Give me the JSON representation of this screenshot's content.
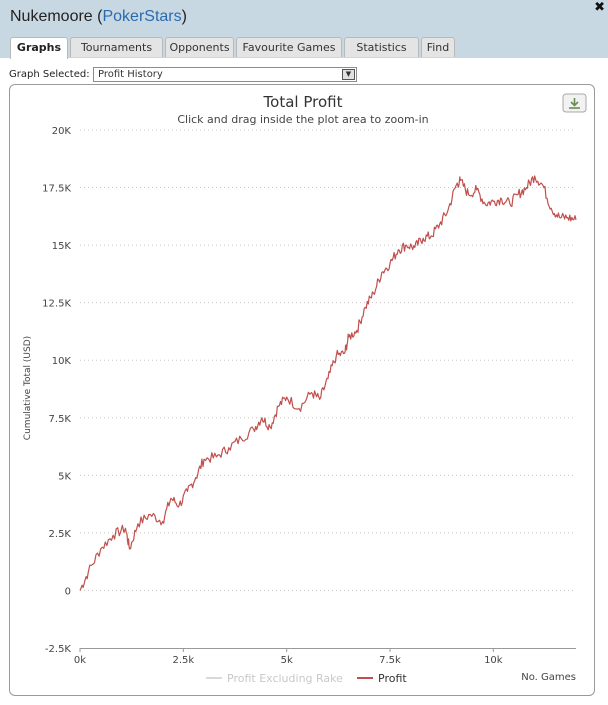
{
  "window": {
    "player": "Nukemoore",
    "site": "PokerStars",
    "title_open": "(",
    "title_close": ")",
    "close_icon": "✖"
  },
  "tabs": [
    "Graphs",
    "Tournaments",
    "Opponents",
    "Favourite Games",
    "Statistics",
    "Find"
  ],
  "active_tab": "Graphs",
  "graph_selector": {
    "label": "Graph Selected:",
    "value": "Profit History"
  },
  "download_icon": "download-icon",
  "chart_data": {
    "type": "line",
    "title": "Total Profit",
    "subtitle": "Click and drag inside the plot area to zoom-in",
    "xlabel": "No. Games",
    "ylabel": "Cumulative Total (USD)",
    "xlim": [
      0,
      12000
    ],
    "ylim": [
      -2500,
      20000
    ],
    "yticks": [
      -2500,
      0,
      2500,
      5000,
      7500,
      10000,
      12500,
      15000,
      17500,
      20000
    ],
    "ytick_labels": [
      "-2.5K",
      "0",
      "2.5K",
      "5K",
      "7.5K",
      "10K",
      "12.5K",
      "15K",
      "17.5K",
      "20K"
    ],
    "xticks": [
      0,
      2500,
      5000,
      7500,
      10000
    ],
    "xtick_labels": [
      "0k",
      "2.5k",
      "5k",
      "7.5k",
      "10k"
    ],
    "grid": true,
    "legend": "bottom-center",
    "series": [
      {
        "name": "Profit Excluding Rake",
        "color": "#d9d9d9",
        "x": [],
        "y": []
      },
      {
        "name": "Profit",
        "color": "#c0504d",
        "x": [
          0,
          200,
          500,
          800,
          1100,
          1200,
          1400,
          1700,
          2000,
          2200,
          2400,
          2600,
          2800,
          3000,
          3300,
          3600,
          3900,
          4200,
          4400,
          4600,
          4800,
          5000,
          5300,
          5600,
          5800,
          6000,
          6200,
          6400,
          6500,
          6700,
          6900,
          7100,
          7300,
          7500,
          7700,
          7900,
          8100,
          8300,
          8500,
          8700,
          8900,
          9100,
          9200,
          9400,
          9600,
          9800,
          10000,
          10200,
          10400,
          10600,
          10800,
          11000,
          11200,
          11400,
          11600,
          11800,
          12000
        ],
        "y": [
          0,
          800,
          1800,
          2400,
          2700,
          1800,
          2900,
          3300,
          3000,
          4000,
          3700,
          4300,
          4900,
          5700,
          5800,
          6200,
          6600,
          7000,
          7500,
          7100,
          8000,
          8400,
          7900,
          8600,
          8300,
          9200,
          10200,
          10300,
          11000,
          11300,
          12300,
          12900,
          13800,
          14200,
          14800,
          15000,
          14900,
          15300,
          15400,
          15900,
          16500,
          17600,
          17800,
          17200,
          17400,
          16800,
          16900,
          17000,
          16800,
          17200,
          17500,
          18000,
          17600,
          16600,
          16200,
          16200,
          16100
        ]
      }
    ]
  }
}
